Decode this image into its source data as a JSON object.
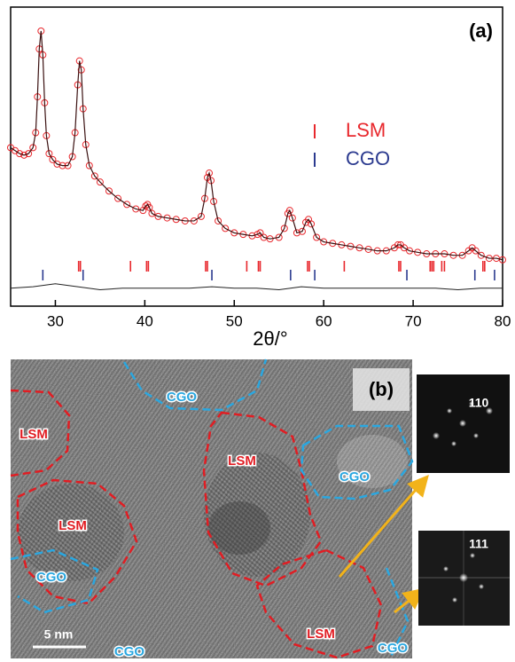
{
  "chart_data": {
    "type": "scatter",
    "panel_label": "(a)",
    "xlabel": "2θ/°",
    "xlim": [
      25,
      80
    ],
    "xticks": [
      30,
      40,
      50,
      60,
      70,
      80
    ],
    "ylim": [
      0,
      100
    ],
    "series": [
      {
        "color": "#e8282d",
        "marker": "circle",
        "x": [
          25,
          25.5,
          26,
          26.5,
          27,
          27.5,
          27.8,
          28.0,
          28.2,
          28.4,
          28.6,
          28.8,
          29.0,
          29.3,
          29.7,
          30.2,
          30.8,
          31.4,
          31.9,
          32.2,
          32.5,
          32.7,
          32.9,
          33.1,
          33.4,
          33.8,
          34.4,
          35,
          36,
          37,
          38,
          39,
          39.8,
          40.1,
          40.3,
          40.5,
          40.8,
          41.5,
          42.5,
          43.5,
          44.5,
          45.5,
          46.3,
          46.7,
          47.0,
          47.2,
          47.4,
          47.7,
          48.2,
          49,
          50,
          51,
          52,
          52.6,
          52.9,
          53.3,
          54,
          55,
          55.6,
          56.0,
          56.2,
          56.5,
          57.0,
          57.6,
          58.0,
          58.3,
          58.6,
          59.2,
          60,
          61,
          62,
          63,
          64,
          65,
          66,
          67,
          67.9,
          68.3,
          68.6,
          69.0,
          69.6,
          70.5,
          71.5,
          72.5,
          73.5,
          74.5,
          75.5,
          76.2,
          76.6,
          77.0,
          77.6,
          78.5,
          79.3,
          80
        ],
        "values": [
          53,
          52,
          51,
          50.5,
          51,
          53,
          58,
          70,
          86,
          92,
          84,
          68,
          57,
          51,
          49,
          47.5,
          47,
          47,
          50,
          58,
          74,
          82,
          79,
          66,
          54,
          47,
          43.5,
          41.5,
          38.5,
          36,
          34,
          32.5,
          32,
          33.5,
          34,
          33,
          31,
          30,
          29.5,
          29,
          28.5,
          28.5,
          30,
          36,
          43,
          44.5,
          42,
          35,
          28.5,
          26,
          24.5,
          24,
          23.5,
          24,
          24.5,
          23,
          22.5,
          23,
          26,
          31,
          32,
          29.5,
          24.5,
          25,
          28,
          29,
          27.5,
          23,
          21.5,
          21,
          20.5,
          20,
          19.5,
          19,
          18.5,
          18.5,
          19.5,
          20.5,
          20.5,
          19.5,
          18.5,
          18,
          17.5,
          17.5,
          17.5,
          17,
          17,
          18.5,
          19.5,
          18.5,
          17,
          16,
          16,
          15.5
        ]
      },
      {
        "color": "#222222",
        "marker": "line",
        "x": [
          25,
          27.5,
          30,
          32.5,
          35,
          37.5,
          40,
          42.5,
          45,
          47.5,
          50,
          52.5,
          55,
          57.5,
          60,
          62.5,
          65,
          67.5,
          70,
          72.5,
          75,
          77.5,
          80
        ],
        "values": [
          6,
          6.5,
          7.5,
          6.5,
          5.5,
          6,
          6,
          6,
          6,
          6.5,
          6,
          6,
          5.5,
          6.5,
          6,
          6,
          6,
          6,
          6,
          6,
          5.5,
          6,
          6
        ]
      },
      {
        "name": "LSM",
        "color": "#e8282d",
        "marker": "reflection",
        "x": [
          32.6,
          32.8,
          38.4,
          40.2,
          40.4,
          46.8,
          47.0,
          51.4,
          52.7,
          52.9,
          58.2,
          58.4,
          62.3,
          68.4,
          68.6,
          71.9,
          72.1,
          72.3,
          73.2,
          73.5,
          77.8,
          78.0
        ]
      },
      {
        "name": "CGO",
        "color": "#2b3a8f",
        "marker": "reflection",
        "x": [
          28.6,
          33.1,
          47.5,
          56.3,
          59.0,
          69.3,
          76.9,
          79.1
        ]
      }
    ]
  },
  "image": {
    "panel_label": "(b)",
    "scale_bar": "5 nm",
    "regions": [
      {
        "label": "LSM"
      },
      {
        "label": "LSM"
      },
      {
        "label": "LSM"
      },
      {
        "label": "LSM"
      },
      {
        "label": "CGO"
      },
      {
        "label": "CGO"
      },
      {
        "label": "CGO"
      },
      {
        "label": "CGO"
      },
      {
        "label": "CGO"
      }
    ],
    "insets": [
      {
        "label": "110"
      },
      {
        "label": "111"
      }
    ]
  }
}
